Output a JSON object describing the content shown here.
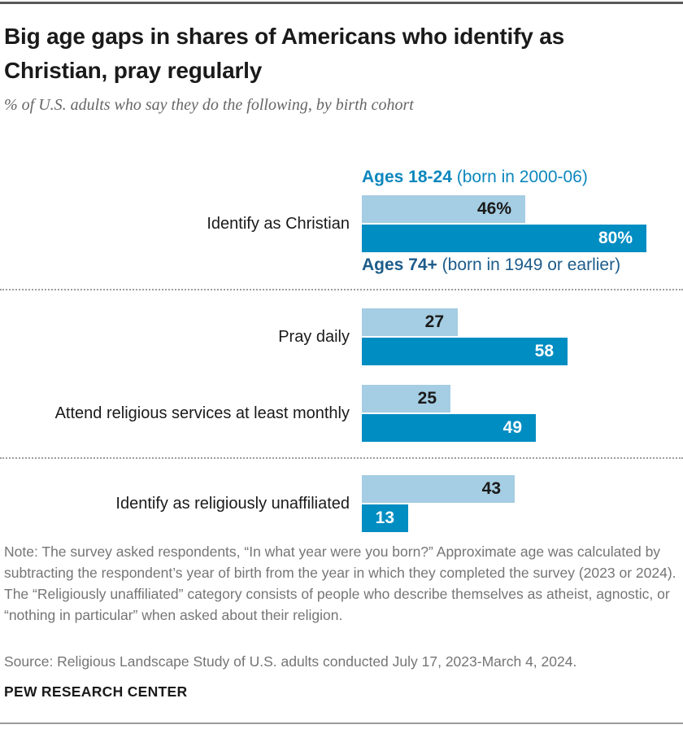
{
  "header": {
    "title": "Big age gaps in shares of Americans who identify as Christian, pray regularly",
    "subtitle": "% of U.S. adults who say they do the following, by birth cohort"
  },
  "legend": {
    "young": {
      "bold": "Ages 18-24",
      "rest": " (born in 2000-06)",
      "color": "#0d87bd"
    },
    "old": {
      "bold": "Ages 74+",
      "rest": " (born in 1949 or earlier)",
      "color": "#1d5c8a"
    }
  },
  "chart_data": {
    "type": "bar",
    "orientation": "horizontal",
    "title": "Big age gaps in shares of Americans who identify as Christian, pray regularly",
    "subtitle": "% of U.S. adults who say they do the following, by birth cohort",
    "unit": "% of U.S. adults",
    "xlim": [
      0,
      100
    ],
    "grid": false,
    "legend_position": "around-first-bar-group",
    "colors": {
      "ages_18_24": "#a5cde3",
      "ages_74_plus": "#008dc2"
    },
    "series": [
      {
        "name": "Ages 18-24 (born in 2000-06)"
      },
      {
        "name": "Ages 74+ (born in 1949 or earlier)"
      }
    ],
    "categories": [
      "Identify as Christian",
      "Pray daily",
      "Attend religious services at least monthly",
      "Identify as religiously unaffiliated"
    ],
    "rows": [
      {
        "label": "Identify as Christian",
        "values": [
          {
            "series": "Ages 18-24 (born in 2000-06)",
            "value": 46,
            "display": "46%"
          },
          {
            "series": "Ages 74+ (born in 1949 or earlier)",
            "value": 80,
            "display": "80%"
          }
        ]
      },
      {
        "label": "Pray daily",
        "values": [
          {
            "series": "Ages 18-24 (born in 2000-06)",
            "value": 27,
            "display": "27"
          },
          {
            "series": "Ages 74+ (born in 1949 or earlier)",
            "value": 58,
            "display": "58"
          }
        ]
      },
      {
        "label": "Attend religious services at least monthly",
        "values": [
          {
            "series": "Ages 18-24 (born in 2000-06)",
            "value": 25,
            "display": "25"
          },
          {
            "series": "Ages 74+ (born in 1949 or earlier)",
            "value": 49,
            "display": "49"
          }
        ]
      },
      {
        "label": "Identify as religiously unaffiliated",
        "values": [
          {
            "series": "Ages 18-24 (born in 2000-06)",
            "value": 43,
            "display": "43"
          },
          {
            "series": "Ages 74+ (born in 1949 or earlier)",
            "value": 13,
            "display": "13"
          }
        ]
      }
    ]
  },
  "footer": {
    "note": "Note: The survey asked respondents, “In what year were you born?” Approximate age was calculated by subtracting the respondent’s year of birth from the year in which they completed the survey (2023 or 2024). The “Religiously unaffiliated” category consists of people who describe themselves as atheist, agnostic, or “nothing in particular” when asked about their religion.",
    "source": "Source: Religious Landscape Study of U.S. adults conducted July 17, 2023-March 4, 2024.",
    "wordmark": "PEW RESEARCH CENTER"
  }
}
